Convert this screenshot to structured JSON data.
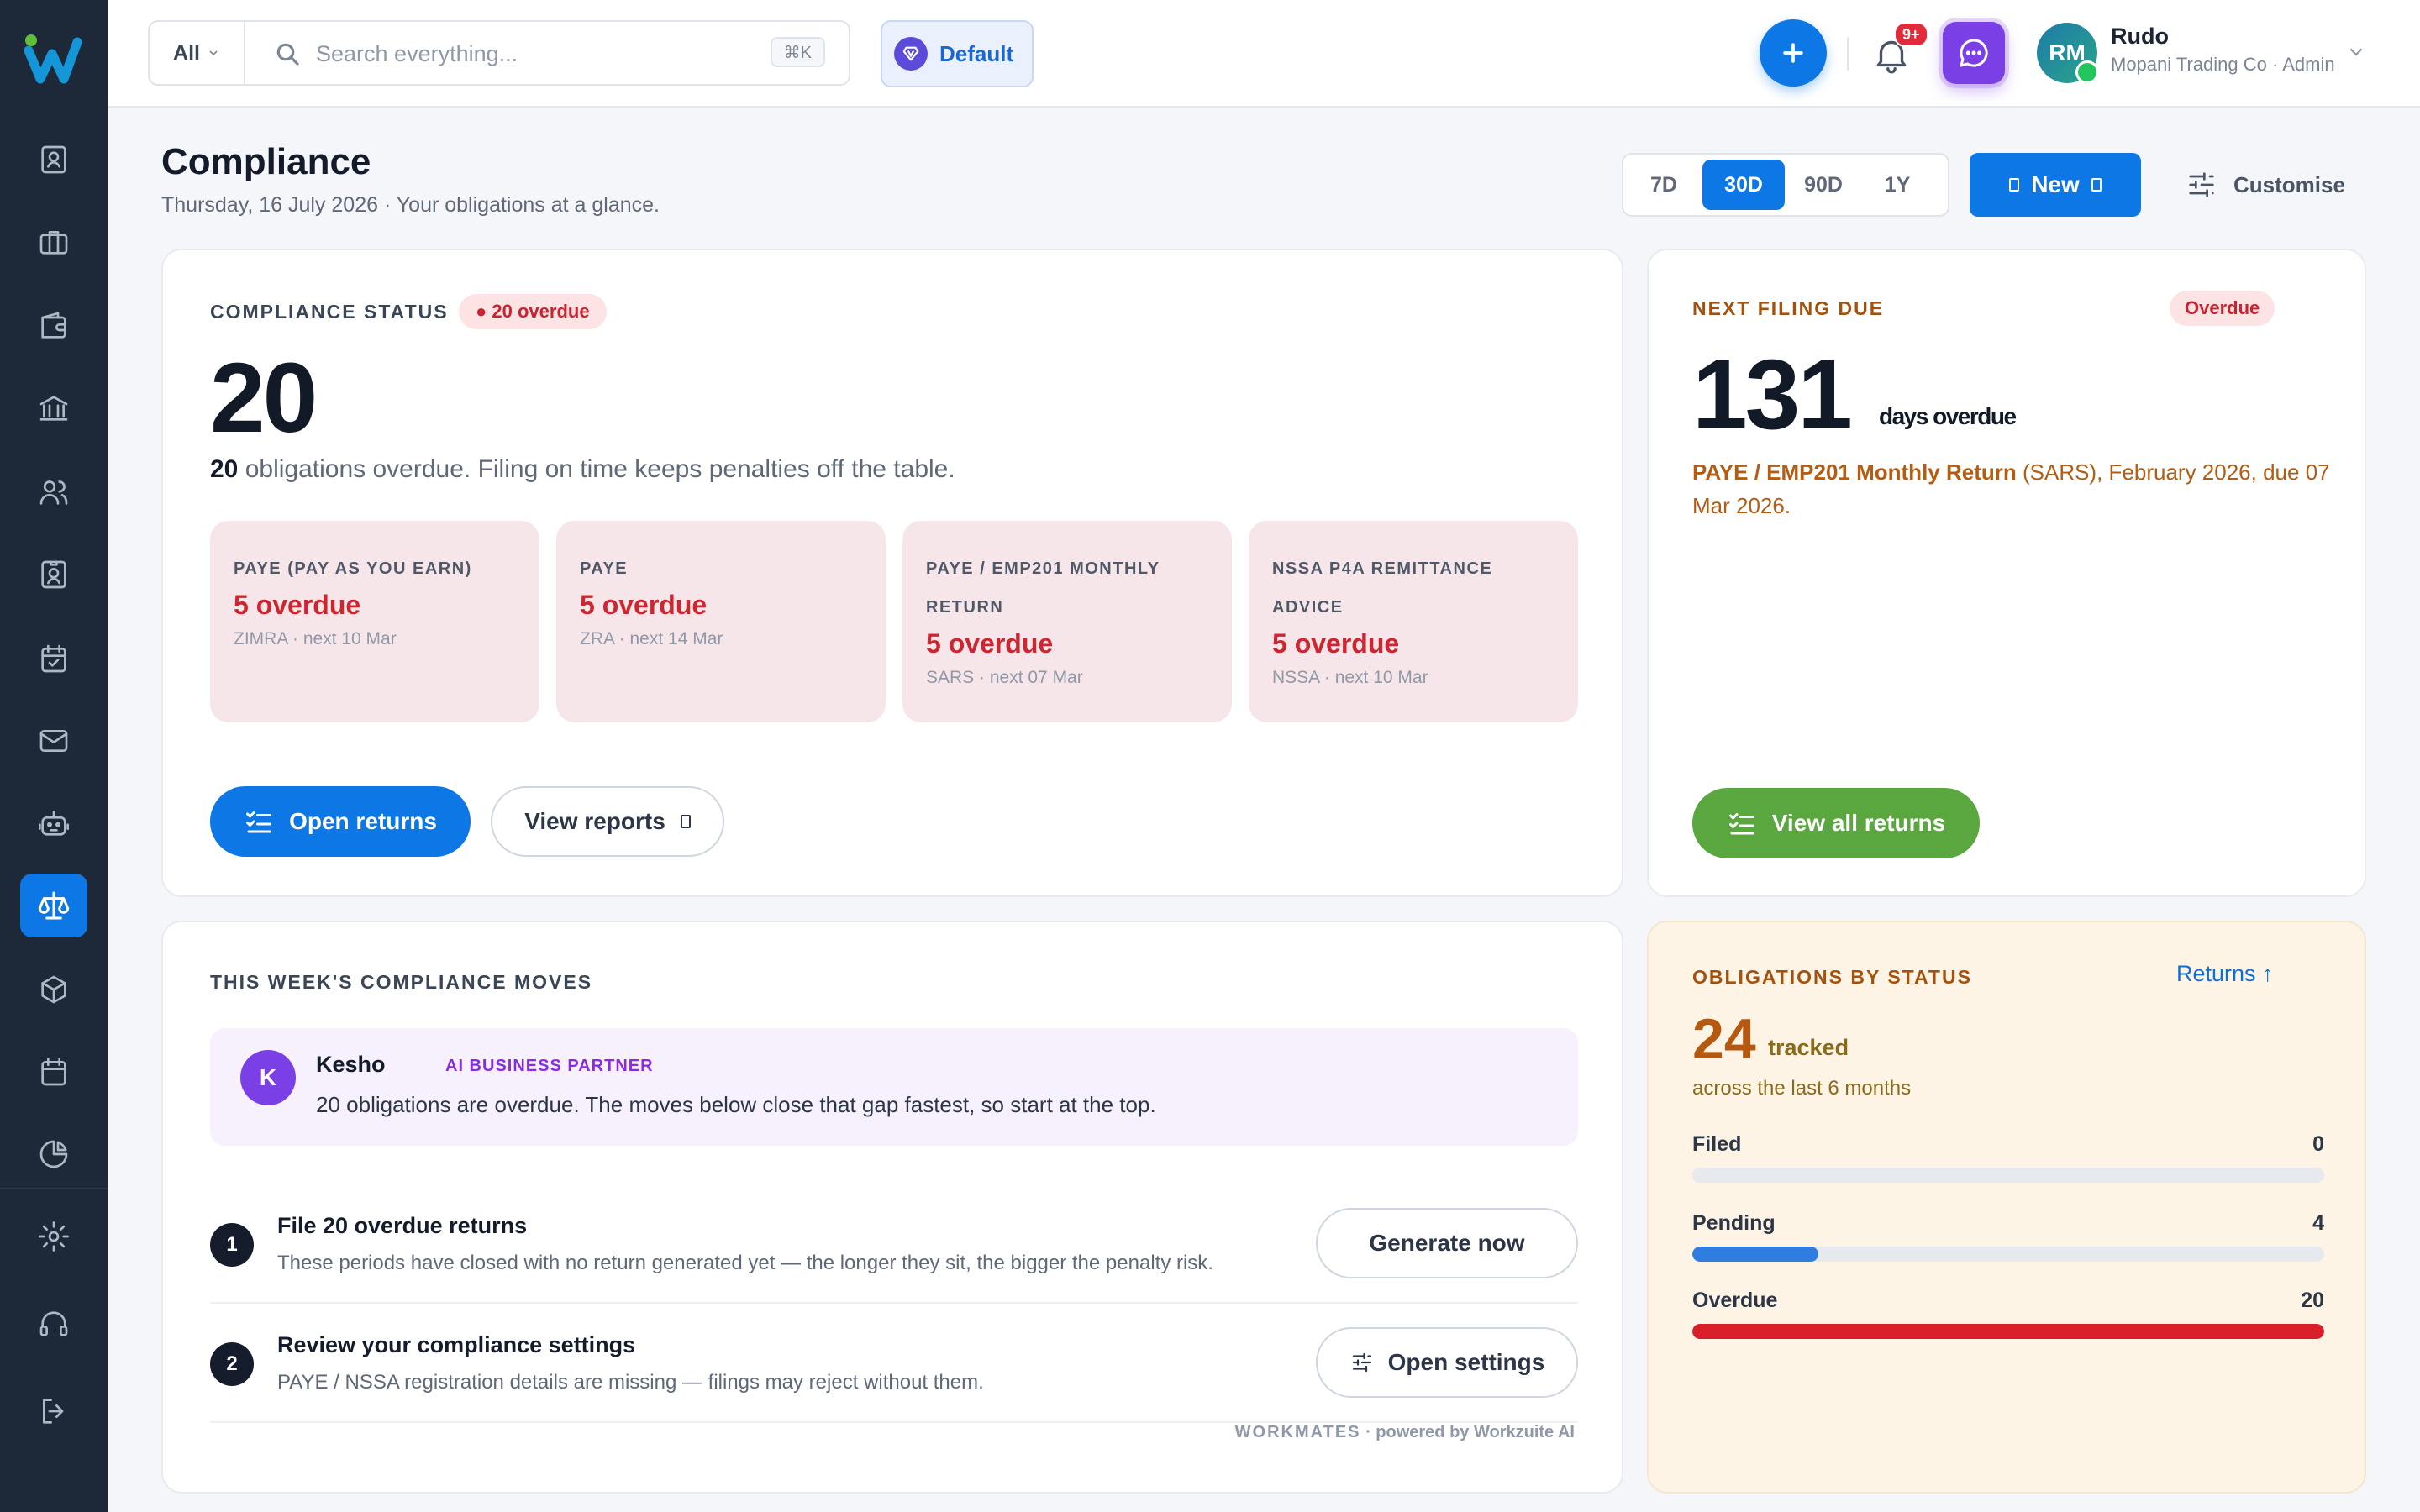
{
  "app": {
    "title": "Compliance"
  },
  "sidebar": {
    "items": [
      {
        "name": "sidebar-item-contacts",
        "icon": "contact-card-icon"
      },
      {
        "name": "sidebar-item-jobs",
        "icon": "briefcase-icon"
      },
      {
        "name": "sidebar-item-wallet",
        "icon": "wallet-icon"
      },
      {
        "name": "sidebar-item-banking",
        "icon": "bank-icon"
      },
      {
        "name": "sidebar-item-people",
        "icon": "users-icon"
      },
      {
        "name": "sidebar-item-employees",
        "icon": "id-badge-icon"
      },
      {
        "name": "sidebar-item-tasks",
        "icon": "calendar-check-icon"
      },
      {
        "name": "sidebar-item-mail",
        "icon": "mail-icon"
      },
      {
        "name": "sidebar-item-assistant",
        "icon": "robot-icon"
      },
      {
        "name": "sidebar-item-compliance",
        "icon": "scales-icon",
        "active": true
      },
      {
        "name": "sidebar-item-inventory",
        "icon": "box-icon"
      },
      {
        "name": "sidebar-item-calendar",
        "icon": "calendar-icon"
      },
      {
        "name": "sidebar-item-reports",
        "icon": "pie-chart-icon"
      },
      {
        "name": "sidebar-item-settings",
        "icon": "gear-icon"
      },
      {
        "name": "sidebar-item-support",
        "icon": "headset-icon"
      },
      {
        "name": "sidebar-item-logout",
        "icon": "logout-icon"
      }
    ]
  },
  "topbar": {
    "scope_label": "All",
    "search_placeholder": "Search everything...",
    "search_shortcut": "⌘K",
    "workspace_label": "Default",
    "notifications_badge": "9+",
    "user": {
      "initials": "RM",
      "name": "Rudo",
      "org": "Mopani Trading Co · Admin"
    }
  },
  "page": {
    "title": "Compliance",
    "subtitle": "Thursday, 16 July 2026 · Your obligations at a glance.",
    "ranges": [
      "7D",
      "30D",
      "90D",
      "1Y"
    ],
    "active_range": "30D",
    "new_label": "New",
    "customise_label": "Customise"
  },
  "status_card": {
    "label": "COMPLIANCE STATUS",
    "pill": "● 20 overdue",
    "big_number": "20",
    "line_count": "20",
    "line_text": " obligations overdue. Filing on time keeps penalties off the table.",
    "obligations": [
      {
        "title": "PAYE (PAY AS YOU EARN)",
        "count": "5 overdue",
        "meta": "ZIMRA · next 10 Mar"
      },
      {
        "title": "PAYE",
        "count": "5 overdue",
        "meta": "ZRA · next 14 Mar"
      },
      {
        "title": "PAYE / EMP201 MONTHLY RETURN",
        "count": "5 overdue",
        "meta": "SARS · next 07 Mar"
      },
      {
        "title": "NSSA P4A REMITTANCE ADVICE",
        "count": "5 overdue",
        "meta": "NSSA · next 10 Mar"
      }
    ],
    "open_returns_label": "Open returns",
    "view_reports_label": "View reports"
  },
  "filing_card": {
    "label": "NEXT FILING DUE",
    "pill": "Overdue",
    "days": "131",
    "unit": "days overdue",
    "desc_bold": "PAYE / EMP201 Monthly Return",
    "desc_rest": " (SARS), February 2026, due 07 Mar 2026.",
    "button_label": "View all returns"
  },
  "moves_card": {
    "label": "THIS WEEK'S COMPLIANCE MOVES",
    "ai": {
      "initial": "K",
      "name": "Kesho",
      "role": "AI BUSINESS PARTNER",
      "text": "20 obligations are overdue. The moves below close that gap fastest, so start at the top."
    },
    "moves": [
      {
        "num": "1",
        "title": "File 20 overdue returns",
        "desc": "These periods have closed with no return generated yet — the longer they sit, the bigger the penalty risk.",
        "button": "Generate now"
      },
      {
        "num": "2",
        "title": "Review your compliance settings",
        "desc": "PAYE / NSSA registration details are missing — filings may reject without them.",
        "button": "Open settings"
      }
    ],
    "footer_brand": "WORKMATES",
    "footer_rest": " · powered by Workzuite AI"
  },
  "obligations_card": {
    "label": "OBLIGATIONS BY STATUS",
    "link": "Returns ↑",
    "total": "24",
    "tracked_label": "tracked",
    "sub": "across the last 6 months",
    "statuses": [
      {
        "label": "Filed",
        "value": "0",
        "fraction": 0,
        "color": "#2f7de1"
      },
      {
        "label": "Pending",
        "value": "4",
        "fraction": 0.2,
        "color": "#2f7de1"
      },
      {
        "label": "Overdue",
        "value": "20",
        "fraction": 1,
        "color": "#d81e28"
      }
    ]
  },
  "colors": {
    "accent": "#0d77e6",
    "danger": "#cc2731",
    "success": "#5aa63f",
    "ai": "#7b3fe6",
    "sidebar": "#1d2838"
  }
}
